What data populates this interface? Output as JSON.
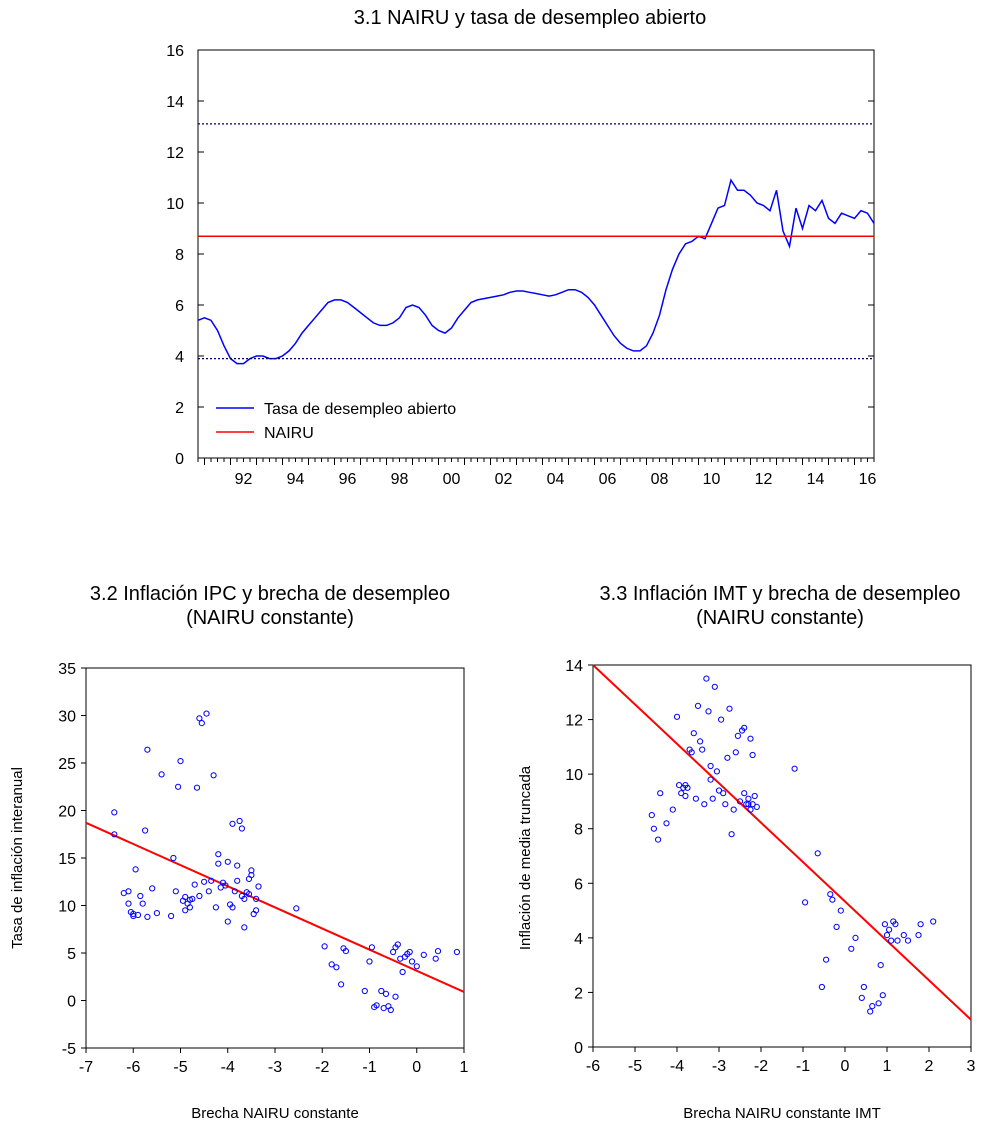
{
  "chart_data": [
    {
      "type": "line",
      "title": "3.1 NAIRU y tasa de desempleo abierto",
      "xlabel": "",
      "ylabel": "",
      "xlim": [
        1990.75,
        2016.75
      ],
      "ylim": [
        0,
        16
      ],
      "x_tick_labels": [
        "92",
        "94",
        "96",
        "98",
        "00",
        "02",
        "04",
        "06",
        "08",
        "10",
        "12",
        "14",
        "16"
      ],
      "x_tick_values": [
        1992,
        1994,
        1996,
        1998,
        2000,
        2002,
        2004,
        2006,
        2008,
        2010,
        2012,
        2014,
        2016
      ],
      "y_ticks": [
        0,
        2,
        4,
        6,
        8,
        10,
        12,
        14,
        16
      ],
      "legend_position": "bottom-left",
      "grid": false,
      "series": [
        {
          "name": "Tasa de desempleo abierto",
          "color": "#0000ff",
          "style": "solid",
          "x": [
            1990.75,
            1991.0,
            1991.25,
            1991.5,
            1991.75,
            1992.0,
            1992.25,
            1992.5,
            1992.75,
            1993.0,
            1993.25,
            1993.5,
            1993.75,
            1994.0,
            1994.25,
            1994.5,
            1994.75,
            1995.0,
            1995.25,
            1995.5,
            1995.75,
            1996.0,
            1996.25,
            1996.5,
            1996.75,
            1997.0,
            1997.25,
            1997.5,
            1997.75,
            1998.0,
            1998.25,
            1998.5,
            1998.75,
            1999.0,
            1999.25,
            1999.5,
            1999.75,
            2000.0,
            2000.25,
            2000.5,
            2000.75,
            2001.0,
            2001.25,
            2001.5,
            2001.75,
            2002.0,
            2002.25,
            2002.5,
            2002.75,
            2003.0,
            2003.25,
            2003.5,
            2003.75,
            2004.0,
            2004.25,
            2004.5,
            2004.75,
            2005.0,
            2005.25,
            2005.5,
            2005.75,
            2006.0,
            2006.25,
            2006.5,
            2006.75,
            2007.0,
            2007.25,
            2007.5,
            2007.75,
            2008.0,
            2008.25,
            2008.5,
            2008.75,
            2009.0,
            2009.25,
            2009.5,
            2009.75,
            2010.0,
            2010.25,
            2010.5,
            2010.75,
            2011.0,
            2011.25,
            2011.5,
            2011.75,
            2012.0,
            2012.25,
            2012.5,
            2012.75,
            2013.0,
            2013.25,
            2013.5,
            2013.75,
            2014.0,
            2014.25,
            2014.5,
            2014.75,
            2015.0,
            2015.25,
            2015.5,
            2015.75,
            2016.0,
            2016.25,
            2016.5,
            2016.75
          ],
          "y": [
            5.4,
            5.5,
            5.4,
            5.0,
            4.4,
            3.9,
            3.7,
            3.7,
            3.9,
            4.0,
            4.0,
            3.9,
            3.9,
            4.0,
            4.2,
            4.5,
            4.9,
            5.2,
            5.5,
            5.8,
            6.1,
            6.2,
            6.2,
            6.1,
            5.9,
            5.7,
            5.5,
            5.3,
            5.2,
            5.2,
            5.3,
            5.5,
            5.9,
            6.0,
            5.9,
            5.6,
            5.2,
            5.0,
            4.9,
            5.1,
            5.5,
            5.8,
            6.1,
            6.2,
            6.25,
            6.3,
            6.35,
            6.4,
            6.5,
            6.55,
            6.55,
            6.5,
            6.45,
            6.4,
            6.35,
            6.4,
            6.5,
            6.6,
            6.6,
            6.5,
            6.3,
            6.0,
            5.6,
            5.2,
            4.8,
            4.5,
            4.3,
            4.2,
            4.2,
            4.4,
            4.9,
            5.6,
            6.6,
            7.4,
            8.0,
            8.4,
            8.5,
            8.7,
            8.6,
            9.2,
            9.8,
            9.9,
            10.9,
            10.5,
            10.5,
            10.3,
            10.0,
            9.9,
            9.7,
            10.5,
            8.9,
            8.3,
            9.8,
            9.0,
            9.9,
            9.7,
            10.1,
            9.4,
            9.2,
            9.6,
            9.5,
            9.4,
            9.7,
            9.6,
            9.2
          ]
        },
        {
          "name": "NAIRU",
          "color": "#ff0000",
          "style": "solid",
          "x": [
            1990.75,
            2016.75
          ],
          "y": [
            8.7,
            8.7
          ]
        },
        {
          "name": "",
          "color": "#000060",
          "style": "dotted",
          "x": [
            1990.75,
            2016.75
          ],
          "y": [
            13.1,
            13.1
          ]
        },
        {
          "name": "",
          "color": "#000060",
          "style": "dotted",
          "x": [
            1990.75,
            2016.75
          ],
          "y": [
            3.9,
            3.9
          ]
        }
      ]
    },
    {
      "type": "scatter",
      "title": "3.2 Inflación IPC y brecha de desempleo (NAIRU constante)",
      "title_lines": [
        "3.2 Inflación IPC y brecha de desempleo",
        "(NAIRU constante)"
      ],
      "xlabel": "Brecha NAIRU constante",
      "ylabel": "Tasa de inflación interanual",
      "xlim": [
        -7,
        1
      ],
      "ylim": [
        -5,
        35
      ],
      "x_ticks": [
        -7,
        -6,
        -5,
        -4,
        -3,
        -2,
        -1,
        0,
        1
      ],
      "y_ticks": [
        -5,
        0,
        5,
        10,
        15,
        20,
        25,
        30,
        35
      ],
      "grid": false,
      "marker_color": "#0000ff",
      "fit_line": {
        "color": "#ff0000",
        "x": [
          -7,
          1
        ],
        "y": [
          18.7,
          0.9
        ]
      },
      "points": {
        "x": [
          -6.4,
          -6.4,
          -6.2,
          -6.1,
          -6.1,
          -6.05,
          -6.0,
          -6.0,
          -5.95,
          -5.9,
          -5.85,
          -5.8,
          -5.75,
          -5.7,
          -5.7,
          -5.6,
          -5.5,
          -5.4,
          -5.2,
          -5.15,
          -5.1,
          -5.05,
          -5.0,
          -4.95,
          -4.9,
          -4.9,
          -4.85,
          -4.8,
          -4.8,
          -4.75,
          -4.7,
          -4.65,
          -4.6,
          -4.6,
          -4.55,
          -4.5,
          -4.45,
          -4.4,
          -4.35,
          -4.3,
          -4.25,
          -4.2,
          -4.2,
          -4.15,
          -4.1,
          -4.05,
          -4.0,
          -4.0,
          -3.95,
          -3.9,
          -3.9,
          -3.85,
          -3.8,
          -3.8,
          -3.75,
          -3.7,
          -3.7,
          -3.65,
          -3.65,
          -3.6,
          -3.55,
          -3.55,
          -3.5,
          -3.5,
          -3.45,
          -3.4,
          -3.4,
          -3.35,
          -2.55,
          -1.95,
          -1.8,
          -1.7,
          -1.6,
          -1.55,
          -1.5,
          -1.1,
          -1.0,
          -0.95,
          -0.9,
          -0.85,
          -0.75,
          -0.7,
          -0.65,
          -0.6,
          -0.55,
          -0.5,
          -0.45,
          -0.45,
          -0.4,
          -0.35,
          -0.3,
          -0.25,
          -0.2,
          -0.15,
          -0.1,
          0.0,
          0.15,
          0.4,
          0.45,
          0.85
        ],
        "y": [
          19.8,
          17.5,
          11.3,
          11.5,
          10.2,
          9.3,
          8.9,
          9.1,
          13.8,
          9.0,
          11.0,
          10.2,
          17.9,
          26.4,
          8.8,
          11.8,
          9.2,
          23.8,
          8.9,
          15.0,
          11.5,
          22.5,
          25.2,
          10.5,
          10.9,
          9.5,
          10.2,
          10.6,
          9.8,
          10.7,
          12.2,
          22.4,
          11.0,
          29.7,
          29.2,
          12.5,
          30.2,
          11.5,
          12.6,
          23.7,
          9.8,
          15.4,
          14.4,
          11.9,
          12.4,
          12.1,
          8.3,
          14.6,
          10.1,
          9.8,
          18.6,
          11.5,
          14.2,
          12.6,
          18.9,
          11.0,
          18.1,
          7.7,
          10.7,
          11.4,
          12.8,
          11.2,
          13.7,
          13.2,
          9.1,
          10.7,
          9.5,
          12.0,
          9.7,
          5.7,
          3.8,
          3.5,
          1.7,
          5.5,
          5.2,
          1.0,
          4.1,
          5.6,
          -0.7,
          -0.5,
          1.0,
          -0.8,
          0.7,
          -0.6,
          -1.0,
          5.1,
          0.4,
          5.6,
          5.9,
          4.4,
          3.0,
          4.6,
          4.9,
          5.1,
          4.1,
          3.6,
          4.8,
          4.4,
          5.2,
          5.1
        ]
      }
    },
    {
      "type": "scatter",
      "title": "3.3 Inflación IMT y brecha de desempleo (NAIRU constante)",
      "title_lines": [
        "3.3 Inflación IMT y brecha de desempleo",
        "(NAIRU constante)"
      ],
      "xlabel": "Brecha NAIRU constante IMT",
      "ylabel": "Inflación de media truncada",
      "xlim": [
        -6,
        3
      ],
      "ylim": [
        0,
        14
      ],
      "x_ticks": [
        -6,
        -5,
        -4,
        -3,
        -2,
        -1,
        0,
        1,
        2,
        3
      ],
      "y_ticks": [
        0,
        2,
        4,
        6,
        8,
        10,
        12,
        14
      ],
      "grid": false,
      "marker_color": "#0000ff",
      "fit_line": {
        "color": "#ff0000",
        "x": [
          -6,
          3
        ],
        "y": [
          14.0,
          1.0
        ]
      },
      "points": {
        "x": [
          -4.6,
          -4.55,
          -4.45,
          -4.4,
          -4.25,
          -4.1,
          -4.0,
          -3.95,
          -3.9,
          -3.85,
          -3.8,
          -3.8,
          -3.75,
          -3.7,
          -3.65,
          -3.6,
          -3.55,
          -3.5,
          -3.45,
          -3.4,
          -3.35,
          -3.3,
          -3.25,
          -3.2,
          -3.2,
          -3.15,
          -3.1,
          -3.05,
          -3.0,
          -2.95,
          -2.9,
          -2.85,
          -2.8,
          -2.75,
          -2.7,
          -2.65,
          -2.6,
          -2.55,
          -2.5,
          -2.45,
          -2.4,
          -2.4,
          -2.35,
          -2.3,
          -2.3,
          -2.25,
          -2.25,
          -2.2,
          -2.2,
          -2.15,
          -2.1,
          -1.2,
          -0.65,
          -0.35,
          -0.3,
          -0.2,
          -0.1,
          0.15,
          0.25,
          0.4,
          0.45,
          0.6,
          0.65,
          0.8,
          0.85,
          0.9,
          0.95,
          1.0,
          1.05,
          1.1,
          1.15,
          1.2,
          1.25,
          1.4,
          1.5,
          1.75,
          1.8,
          2.1,
          -0.45,
          -0.55,
          -0.95
        ],
        "y": [
          8.5,
          8.0,
          7.6,
          9.3,
          8.2,
          8.7,
          12.1,
          9.6,
          9.3,
          9.5,
          9.6,
          9.2,
          9.5,
          10.9,
          10.8,
          11.5,
          9.1,
          12.5,
          11.2,
          10.9,
          8.9,
          13.5,
          12.3,
          9.8,
          10.3,
          9.1,
          13.2,
          10.1,
          9.4,
          12.0,
          9.3,
          8.9,
          10.6,
          12.4,
          7.8,
          8.7,
          10.8,
          11.4,
          9.0,
          11.6,
          11.7,
          9.3,
          8.9,
          8.9,
          9.1,
          8.7,
          11.3,
          8.9,
          10.7,
          9.2,
          8.8,
          10.2,
          7.1,
          5.6,
          5.4,
          4.4,
          5.0,
          3.6,
          4.0,
          1.8,
          2.2,
          1.3,
          1.5,
          1.6,
          3.0,
          1.9,
          4.5,
          4.1,
          4.3,
          3.9,
          4.6,
          4.5,
          3.9,
          4.1,
          3.9,
          4.1,
          4.5,
          4.6,
          3.2,
          2.2,
          5.3
        ]
      }
    }
  ]
}
